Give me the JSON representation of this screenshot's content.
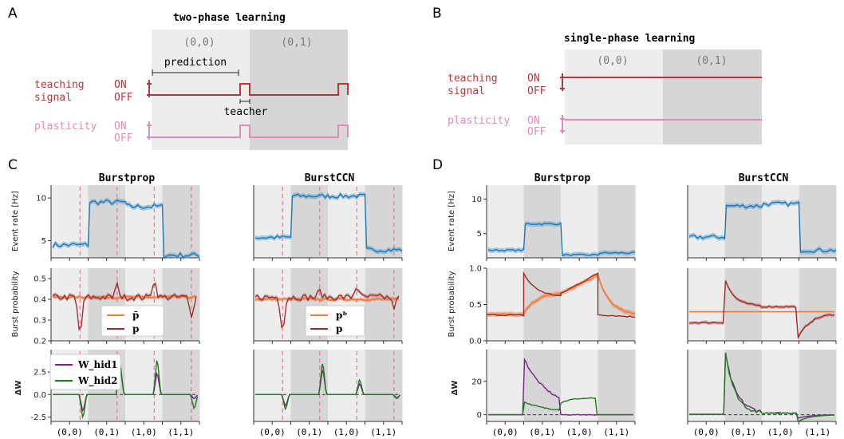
{
  "colors": {
    "teach": "#b03a3e",
    "plast": "#e08cb8",
    "blue": "#1f77b4",
    "blueband": "#6aa9d6",
    "orange": "#f07a3a",
    "darkred": "#9b2a2a",
    "purple": "#7b1f8a",
    "green": "#1e7a1e",
    "shade_light": "#ededed",
    "shade_dark": "#d6d6d6",
    "vline": "#e07a92"
  },
  "panels": {
    "A": "A",
    "B": "B",
    "C": "C",
    "D": "D"
  },
  "schematicA": {
    "title": "two-phase learning",
    "phase1": "(0,0)",
    "phase2": "(0,1)",
    "prediction": "prediction",
    "teacher": "teacher",
    "teach_label1": "teaching",
    "teach_label2": "signal",
    "plast_label": "plasticity",
    "on": "ON",
    "off": "OFF"
  },
  "schematicB": {
    "title": "single-phase learning",
    "phase1": "(0,0)",
    "phase2": "(0,1)",
    "teach_label1": "teaching",
    "teach_label2": "signal",
    "plast_label": "plasticity",
    "on": "ON",
    "off": "OFF"
  },
  "ylabels": {
    "rate": "Event rate [Hz]",
    "burst": "Burst probability",
    "dw": "ΔW"
  },
  "legends": {
    "pbar": "p̄",
    "p": "p",
    "pb": "pᵇ",
    "whid1": "W_hid1",
    "whid2": "W_hid2"
  },
  "chart_data": [
    {
      "panel": "C",
      "model": "Burstprop",
      "type": "line",
      "categories": [
        "(0,0)",
        "(0,1)",
        "(1,0)",
        "(1,1)"
      ],
      "rate": {
        "ylim": [
          3,
          11.5
        ],
        "yticks": [
          5,
          10
        ],
        "segments": [
          4.5,
          9.5,
          9.0,
          3.3
        ]
      },
      "burst": {
        "ylim": [
          0.2,
          0.55
        ],
        "yticks": [
          0.2,
          0.3,
          0.4,
          0.5
        ],
        "pbar": 0.41,
        "p": 0.41
      },
      "dw": {
        "ylim": [
          -3,
          5
        ],
        "yticks": [
          -2.5,
          0.0,
          2.5
        ],
        "whid1_peaks": [
          -2.0,
          3.5,
          2.6,
          -0.5
        ],
        "whid2_peaks": [
          -2.8,
          3.8,
          4.2,
          -1.7
        ]
      }
    },
    {
      "panel": "C",
      "model": "BurstCCN",
      "type": "line",
      "categories": [
        "(0,0)",
        "(0,1)",
        "(1,0)",
        "(1,1)"
      ],
      "rate": {
        "ylim": [
          1.5,
          11.5
        ],
        "yticks": [],
        "segments": [
          4.3,
          10.0,
          10.0,
          2.6
        ]
      },
      "burst": {
        "ylim": [
          0.2,
          0.55
        ],
        "yticks": [],
        "pb": 0.4,
        "p": 0.41
      },
      "dw": {
        "ylim": [
          -3,
          5
        ],
        "yticks": [],
        "whid1_peaks": [
          -1.4,
          3.0,
          1.3,
          -0.4
        ],
        "whid2_peaks": [
          -1.8,
          3.8,
          1.8,
          -0.5
        ]
      }
    },
    {
      "panel": "D",
      "model": "Burstprop",
      "type": "line",
      "categories": [
        "(0,0)",
        "(0,1)",
        "(1,0)",
        "(1,1)"
      ],
      "rate": {
        "ylim": [
          1.5,
          12
        ],
        "yticks": [
          5,
          10
        ],
        "segments": [
          2.6,
          6.4,
          1.9,
          2.2
        ]
      },
      "burst": {
        "ylim": [
          0.0,
          1.0
        ],
        "yticks": [
          0.0,
          0.5,
          1.0
        ]
      },
      "dw": {
        "ylim": [
          -4,
          39
        ],
        "yticks": [
          0,
          20
        ]
      }
    },
    {
      "panel": "D",
      "model": "BurstCCN",
      "type": "line",
      "categories": [
        "(0,0)",
        "(0,1)",
        "(1,0)",
        "(1,1)"
      ],
      "rate": {
        "ylim": [
          1.5,
          12
        ],
        "yticks": [],
        "segments": [
          4.5,
          9.0,
          9.3,
          2.6
        ]
      },
      "burst": {
        "ylim": [
          0.0,
          1.0
        ],
        "yticks": [],
        "pb": 0.4
      },
      "dw": {
        "ylim": [
          -4,
          39
        ],
        "yticks": []
      }
    }
  ]
}
